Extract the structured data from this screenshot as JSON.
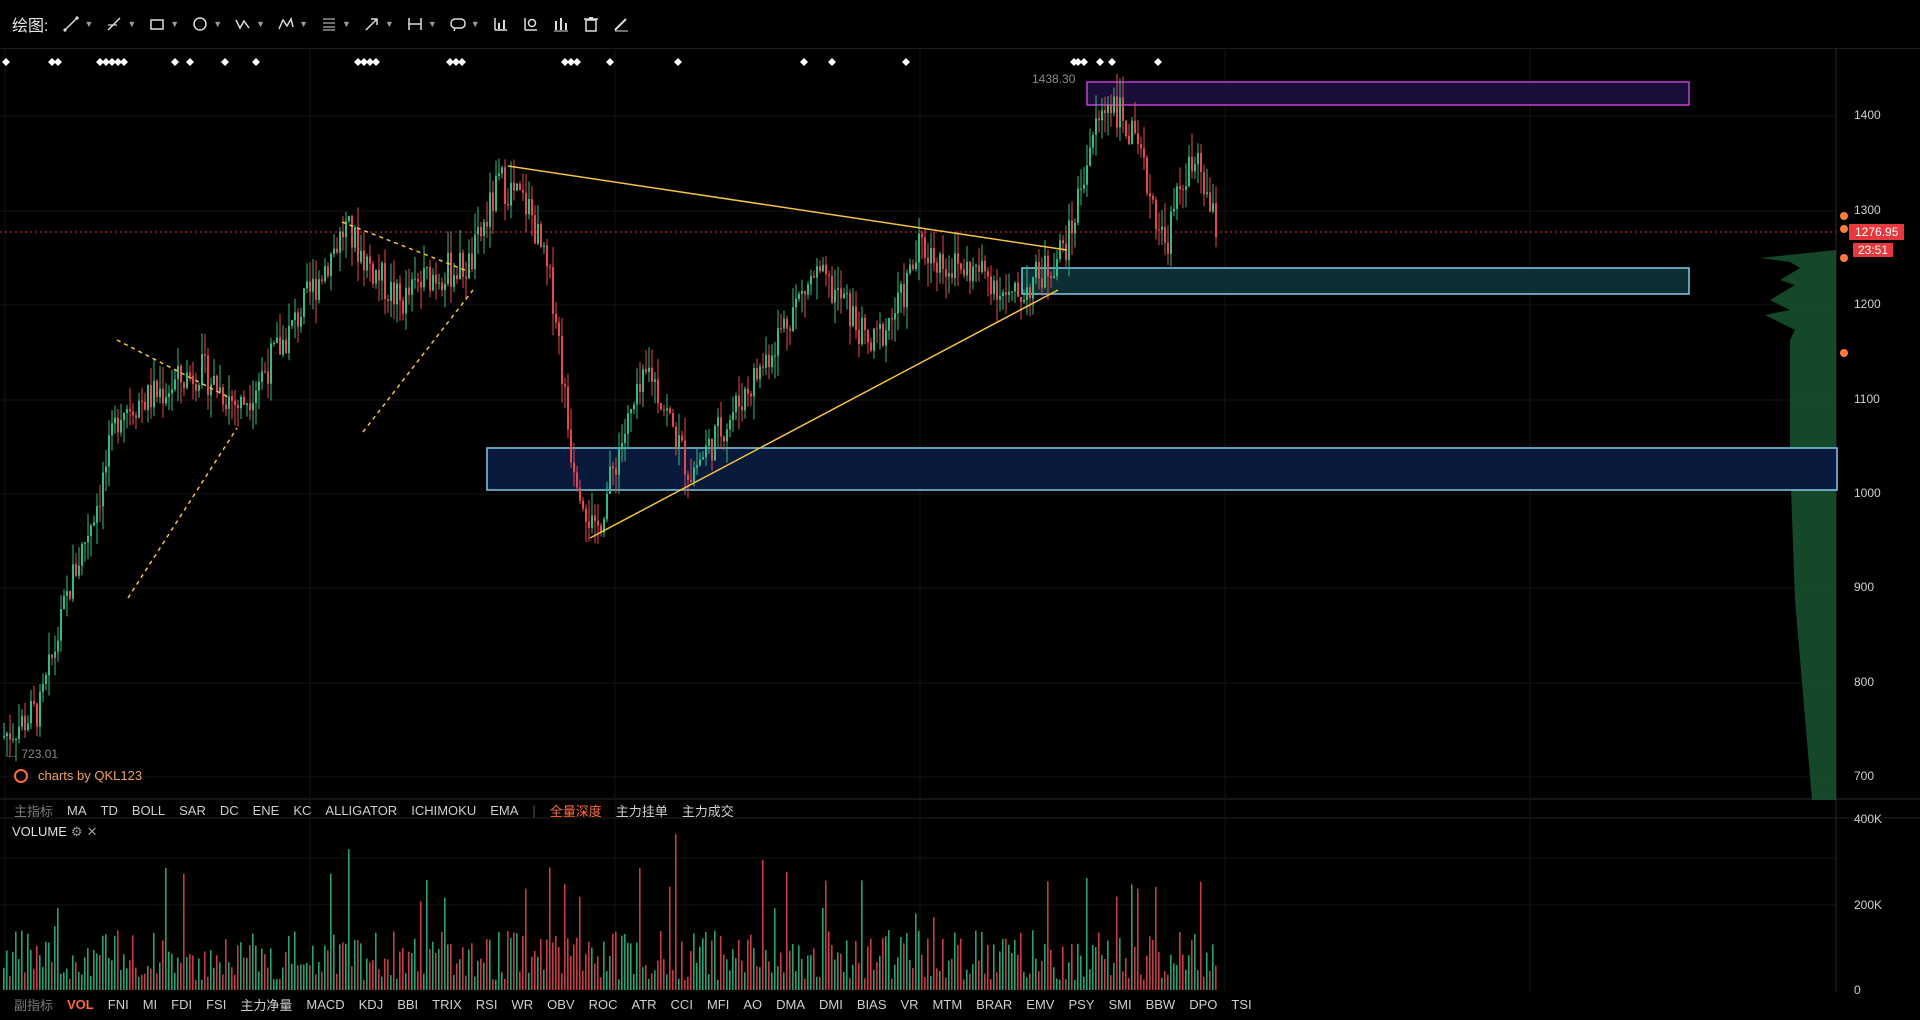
{
  "toolbar": {
    "label": "绘图:",
    "tools": [
      "line-tool-icon",
      "ray-tool-icon",
      "rect-tool-icon",
      "circle-tool-icon",
      "wave-tool-icon",
      "pattern-tool-icon",
      "fib-tool-icon",
      "arrow-tool-icon",
      "measure-tool-icon",
      "comment-tool-icon",
      "indicator-icon",
      "chart-settings-icon",
      "bar-chart-icon",
      "trash-icon",
      "pencil-icon"
    ]
  },
  "chart": {
    "high_label": "1438.30",
    "low_label": "723.01",
    "brand": "charts by QKL123",
    "price_axis": [
      "1400",
      "1300",
      "1200",
      "1100",
      "1000",
      "900",
      "800",
      "700"
    ],
    "current_price": "1276.95",
    "countdown": "23:51",
    "colors": {
      "up": "#2ebd85",
      "down": "#e8474d",
      "trend": "#f5c242",
      "zone_blue": "#7ecbe6",
      "zone_purple": "#c43fd6",
      "current": "#e8383d"
    }
  },
  "main_indicators": {
    "label": "主指标",
    "items": [
      "MA",
      "TD",
      "BOLL",
      "SAR",
      "DC",
      "ENE",
      "KC",
      "ALLIGATOR",
      "ICHIMOKU",
      "EMA"
    ],
    "separator": "|",
    "extras": [
      "全量深度",
      "主力挂单",
      "主力成交"
    ],
    "active": "全量深度"
  },
  "volume_panel": {
    "title": "VOLUME",
    "axis": [
      "400K",
      "200K",
      "0"
    ]
  },
  "sub_indicators": {
    "label": "副指标",
    "items": [
      "VOL",
      "FNI",
      "MI",
      "FDI",
      "FSI",
      "主力净量",
      "MACD",
      "KDJ",
      "BBI",
      "TRIX",
      "RSI",
      "WR",
      "OBV",
      "ROC",
      "ATR",
      "CCI",
      "MFI",
      "AO",
      "DMA",
      "DMI",
      "BIAS",
      "VR",
      "MTM",
      "BRAR",
      "EMV",
      "PSY",
      "SMI",
      "BBW",
      "DPO",
      "TSI"
    ],
    "active": "VOL"
  }
}
